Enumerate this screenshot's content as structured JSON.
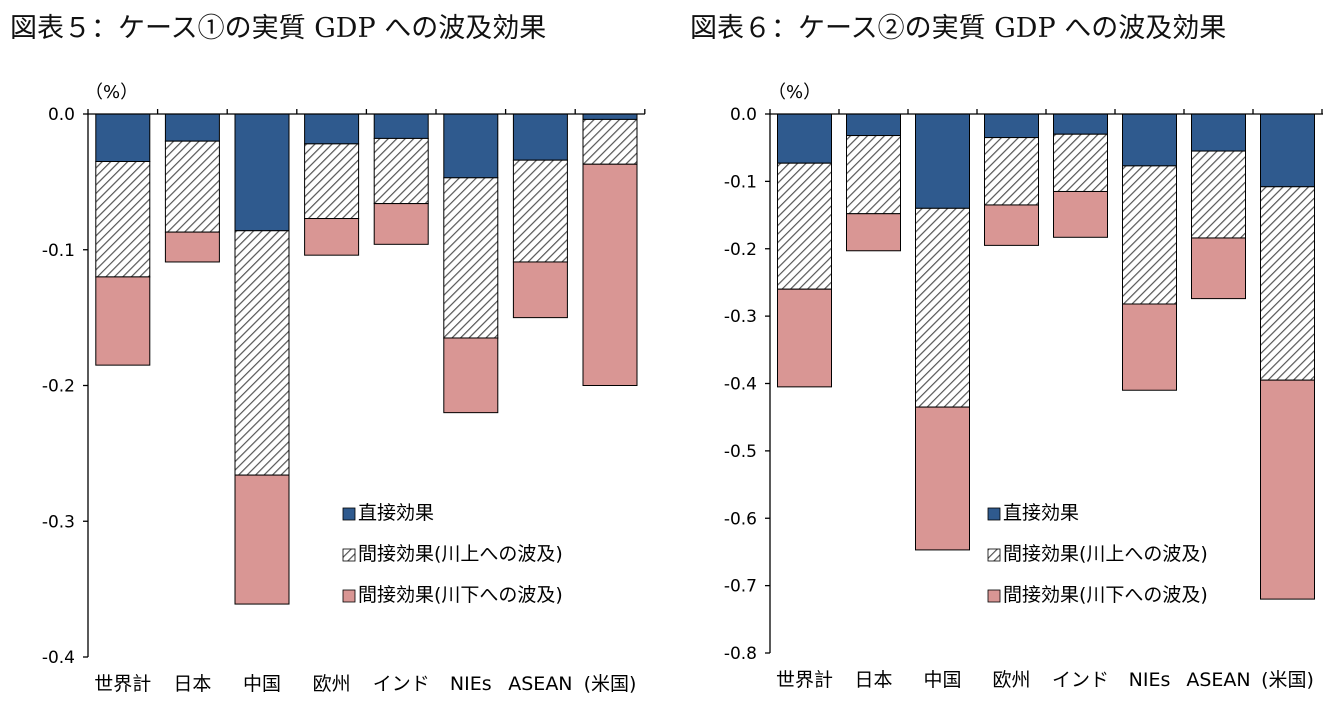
{
  "chart_data": [
    {
      "type": "bar",
      "stacked": true,
      "title": "図表５：ケース①の実質 GDP への波及効果",
      "unit_label": "（%）",
      "categories": [
        "世界計",
        "日本",
        "中国",
        "欧州",
        "インド",
        "NIEs",
        "ASEAN",
        "(米国)"
      ],
      "series": [
        {
          "name": "直接効果",
          "color": "#2f5a8e",
          "pattern": "solid",
          "values": [
            -0.035,
            -0.02,
            -0.086,
            -0.022,
            -0.018,
            -0.047,
            -0.034,
            -0.004
          ]
        },
        {
          "name": "間接効果(川上への波及)",
          "color": "#8c8c8c",
          "pattern": "hatch",
          "values": [
            -0.085,
            -0.067,
            -0.18,
            -0.055,
            -0.048,
            -0.118,
            -0.075,
            -0.033
          ]
        },
        {
          "name": "間接効果(川下への波及)",
          "color": "#d99694",
          "pattern": "solid",
          "values": [
            -0.065,
            -0.022,
            -0.095,
            -0.027,
            -0.03,
            -0.055,
            -0.041,
            -0.163
          ]
        }
      ],
      "ylim": [
        -0.4,
        0.0
      ],
      "yticks": [
        0.0,
        -0.1,
        -0.2,
        -0.3,
        -0.4
      ],
      "ytick_labels": [
        "0.0",
        "-0.1",
        "-0.2",
        "-0.3",
        "-0.4"
      ],
      "legend_position": "inside-lower-right",
      "grid": false
    },
    {
      "type": "bar",
      "stacked": true,
      "title": "図表６：ケース②の実質 GDP への波及効果",
      "unit_label": "（%）",
      "categories": [
        "世界計",
        "日本",
        "中国",
        "欧州",
        "インド",
        "NIEs",
        "ASEAN",
        "(米国)"
      ],
      "series": [
        {
          "name": "直接効果",
          "color": "#2f5a8e",
          "pattern": "solid",
          "values": [
            -0.073,
            -0.032,
            -0.14,
            -0.035,
            -0.03,
            -0.077,
            -0.055,
            -0.108
          ]
        },
        {
          "name": "間接効果(川上への波及)",
          "color": "#8c8c8c",
          "pattern": "hatch",
          "values": [
            -0.187,
            -0.116,
            -0.295,
            -0.1,
            -0.085,
            -0.205,
            -0.129,
            -0.287
          ]
        },
        {
          "name": "間接効果(川下への波及)",
          "color": "#d99694",
          "pattern": "solid",
          "values": [
            -0.145,
            -0.055,
            -0.212,
            -0.06,
            -0.068,
            -0.128,
            -0.09,
            -0.325
          ]
        }
      ],
      "ylim": [
        -0.8,
        0.0
      ],
      "yticks": [
        0.0,
        -0.1,
        -0.2,
        -0.3,
        -0.4,
        -0.5,
        -0.6,
        -0.7,
        -0.8
      ],
      "ytick_labels": [
        "0.0",
        "-0.1",
        "-0.2",
        "-0.3",
        "-0.4",
        "-0.5",
        "-0.6",
        "-0.7",
        "-0.8"
      ],
      "legend_position": "inside-lower-right",
      "grid": false
    }
  ]
}
